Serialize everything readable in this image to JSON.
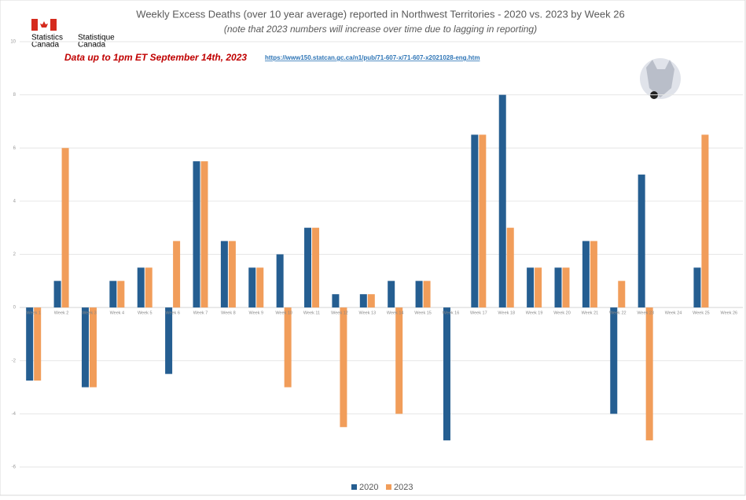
{
  "logo": {
    "en": [
      "Statistics",
      "Canada"
    ],
    "fr": [
      "Statistique",
      "Canada"
    ]
  },
  "chart_data": {
    "type": "bar",
    "title": "Weekly Excess Deaths (over 10 year average) reported in Northwest Territories - 2020 vs. 2023 by Week 26",
    "subtitle": "(note that 2023 numbers will increase over time due to lagging in reporting)",
    "annotations": [
      "Data up to 1pm ET September 14th, 2023",
      "https://www150.statcan.gc.ca/n1/pub/71-607-x/71-607-x2021028-eng.htm"
    ],
    "categories": [
      "Week 1",
      "Week 2",
      "Week 3",
      "Week 4",
      "Week 5",
      "Week 6",
      "Week 7",
      "Week 8",
      "Week 9",
      "Week 10",
      "Week 11",
      "Week 12",
      "Week 13",
      "Week 14",
      "Week 15",
      "Week 16",
      "Week 17",
      "Week 18",
      "Week 19",
      "Week 20",
      "Week 21",
      "Week 22",
      "Week 23",
      "Week 24",
      "Week 25",
      "Week 26"
    ],
    "series": [
      {
        "name": "2020",
        "color": "#255e91",
        "values": [
          -2.75,
          1,
          -3,
          1,
          1.5,
          -2.5,
          5.5,
          2.5,
          1.5,
          2,
          3,
          0.5,
          0.5,
          1,
          1,
          -5,
          6.5,
          8,
          1.5,
          1.5,
          2.5,
          -4,
          5,
          0,
          1.5,
          0
        ]
      },
      {
        "name": "2023",
        "color": "#f19d5a",
        "values": [
          -2.75,
          6,
          -3,
          1,
          1.5,
          2.5,
          5.5,
          2.5,
          1.5,
          -3,
          3,
          -4.5,
          0.5,
          -4,
          1,
          0,
          6.5,
          3,
          1.5,
          1.5,
          2.5,
          1,
          -5,
          0,
          6.5,
          0
        ]
      }
    ],
    "ylim": [
      -6,
      10
    ],
    "yticks": [
      -6,
      -4,
      -2,
      0,
      2,
      4,
      6,
      8,
      10
    ],
    "grid": true,
    "legend": "bottom"
  }
}
